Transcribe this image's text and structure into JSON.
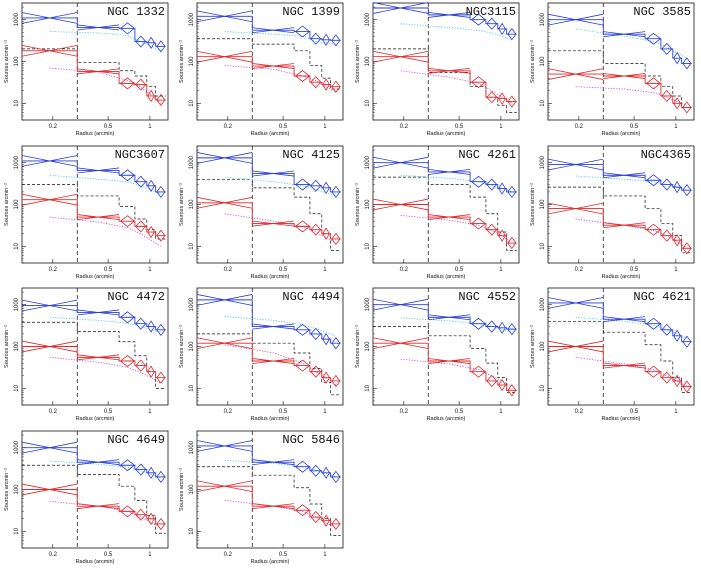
{
  "chart_data": {
    "type": "line",
    "xlabel": "Radius (arcmin)",
    "ylabel": "Sources arcmin⁻²",
    "x_ticks": [
      "0.2",
      "0.5",
      "1"
    ],
    "y_ticks": [
      "10",
      "100",
      "1000"
    ],
    "x_scale": "log",
    "y_scale": "log",
    "xlim": [
      0.12,
      1.35
    ],
    "ylim": [
      4,
      2500
    ],
    "colors": {
      "blue": "#2a3fd6",
      "red": "#e0292b",
      "cyan": "#3fc9e6",
      "magenta": "#d23fd2",
      "black": "#111111"
    },
    "x_bin_edges": [
      0.12,
      0.3,
      0.6,
      0.78,
      0.95,
      1.1,
      1.3
    ],
    "x_bin_centers": [
      0.19,
      0.43,
      0.69,
      0.86,
      1.02,
      1.2
    ],
    "panels": [
      {
        "title": "NGC 1332",
        "blue": [
          1100,
          650,
          620,
          300,
          280,
          230
        ],
        "red": [
          180,
          58,
          30,
          28,
          15,
          12
        ],
        "black": [
          200,
          95,
          60,
          45,
          25,
          15
        ],
        "cyan": [
          520,
          480,
          420,
          300,
          230,
          180
        ],
        "magenta": [
          70,
          55,
          35,
          24,
          16,
          10
        ]
      },
      {
        "title": "NGC 1399",
        "blue": [
          1200,
          560,
          520,
          350,
          330,
          320
        ],
        "red": [
          130,
          78,
          45,
          32,
          28,
          25
        ],
        "black": [
          350,
          260,
          180,
          80,
          40,
          22
        ],
        "cyan": [
          520,
          450,
          400,
          300,
          280,
          260
        ],
        "magenta": [
          80,
          65,
          45,
          35,
          25,
          18
        ]
      },
      {
        "title": "NGC3115",
        "blue": [
          1900,
          1300,
          1000,
          800,
          600,
          450
        ],
        "red": [
          130,
          60,
          32,
          14,
          13,
          11
        ],
        "black": [
          200,
          55,
          25,
          14,
          9,
          6
        ],
        "cyan": [
          800,
          650,
          550,
          480,
          400,
          320
        ],
        "magenta": [
          60,
          42,
          30,
          20,
          14,
          10
        ]
      },
      {
        "title": "NGC 3585",
        "blue": [
          1000,
          450,
          350,
          200,
          120,
          90
        ],
        "red": [
          50,
          45,
          30,
          15,
          10,
          8
        ],
        "black": [
          180,
          90,
          45,
          25,
          15,
          8
        ],
        "cyan": [
          600,
          400,
          300,
          220,
          160,
          120
        ],
        "magenta": [
          25,
          22,
          18,
          14,
          11,
          9
        ]
      },
      {
        "title": "NGC3607",
        "blue": [
          1100,
          650,
          500,
          350,
          280,
          200
        ],
        "red": [
          130,
          50,
          40,
          30,
          22,
          18
        ],
        "black": [
          300,
          160,
          90,
          45,
          25,
          15
        ],
        "cyan": [
          500,
          400,
          350,
          280,
          220,
          180
        ],
        "magenta": [
          50,
          38,
          28,
          20,
          14,
          10
        ]
      },
      {
        "title": "NGC 4125",
        "blue": [
          1300,
          550,
          300,
          280,
          250,
          200
        ],
        "red": [
          110,
          35,
          30,
          25,
          20,
          15
        ],
        "black": [
          400,
          250,
          150,
          60,
          20,
          8
        ],
        "cyan": [
          450,
          350,
          280,
          230,
          190,
          160
        ],
        "magenta": [
          60,
          40,
          30,
          22,
          16,
          12
        ]
      },
      {
        "title": "NGC 4261",
        "blue": [
          1000,
          600,
          350,
          300,
          240,
          200
        ],
        "red": [
          100,
          50,
          35,
          25,
          18,
          12
        ],
        "black": [
          450,
          300,
          150,
          60,
          22,
          8
        ],
        "cyan": [
          500,
          420,
          350,
          290,
          240,
          200
        ],
        "magenta": [
          55,
          42,
          32,
          24,
          18,
          12
        ]
      },
      {
        "title": "NGC4365",
        "blue": [
          900,
          500,
          380,
          300,
          260,
          220
        ],
        "red": [
          80,
          32,
          25,
          18,
          14,
          9
        ],
        "black": [
          260,
          160,
          80,
          35,
          18,
          7
        ],
        "cyan": [
          480,
          400,
          350,
          300,
          260,
          220
        ],
        "magenta": [
          45,
          32,
          24,
          18,
          13,
          9
        ]
      },
      {
        "title": "NGC 4472",
        "blue": [
          950,
          650,
          500,
          350,
          300,
          250
        ],
        "red": [
          100,
          55,
          45,
          35,
          25,
          18
        ],
        "black": [
          380,
          230,
          130,
          60,
          25,
          10
        ],
        "cyan": [
          500,
          420,
          360,
          300,
          250,
          210
        ],
        "magenta": [
          55,
          42,
          32,
          24,
          18,
          13
        ]
      },
      {
        "title": "NGC 4494",
        "blue": [
          1300,
          300,
          250,
          200,
          150,
          120
        ],
        "red": [
          120,
          45,
          35,
          25,
          18,
          15
        ],
        "black": [
          200,
          120,
          70,
          30,
          14,
          7
        ],
        "cyan": [
          520,
          420,
          330,
          270,
          220,
          180
        ],
        "magenta": [
          110,
          70,
          40,
          25,
          18,
          12
        ]
      },
      {
        "title": "NGC 4552",
        "blue": [
          1000,
          500,
          350,
          300,
          280,
          260
        ],
        "red": [
          120,
          45,
          25,
          15,
          12,
          9
        ],
        "black": [
          300,
          180,
          90,
          40,
          18,
          8
        ],
        "cyan": [
          480,
          410,
          350,
          300,
          260,
          220
        ],
        "magenta": [
          50,
          38,
          28,
          20,
          15,
          11
        ]
      },
      {
        "title": "NGC 4621",
        "blue": [
          1100,
          450,
          350,
          250,
          180,
          130
        ],
        "red": [
          100,
          35,
          25,
          18,
          15,
          11
        ],
        "black": [
          400,
          220,
          110,
          45,
          18,
          8
        ],
        "cyan": [
          500,
          400,
          320,
          250,
          200,
          160
        ],
        "magenta": [
          55,
          38,
          28,
          20,
          15,
          11
        ]
      },
      {
        "title": "NGC 4649",
        "blue": [
          1000,
          450,
          380,
          300,
          250,
          200
        ],
        "red": [
          100,
          40,
          30,
          25,
          20,
          15
        ],
        "black": [
          380,
          230,
          120,
          55,
          24,
          9
        ],
        "cyan": [
          480,
          400,
          340,
          280,
          230,
          190
        ],
        "magenta": [
          52,
          40,
          30,
          22,
          16,
          12
        ]
      },
      {
        "title": "NGC 5846",
        "blue": [
          1100,
          450,
          350,
          280,
          250,
          200
        ],
        "red": [
          120,
          40,
          32,
          22,
          18,
          15
        ],
        "black": [
          350,
          220,
          110,
          45,
          20,
          8
        ],
        "cyan": [
          500,
          420,
          350,
          290,
          240,
          200
        ],
        "magenta": [
          55,
          40,
          30,
          22,
          16,
          12
        ]
      }
    ]
  }
}
